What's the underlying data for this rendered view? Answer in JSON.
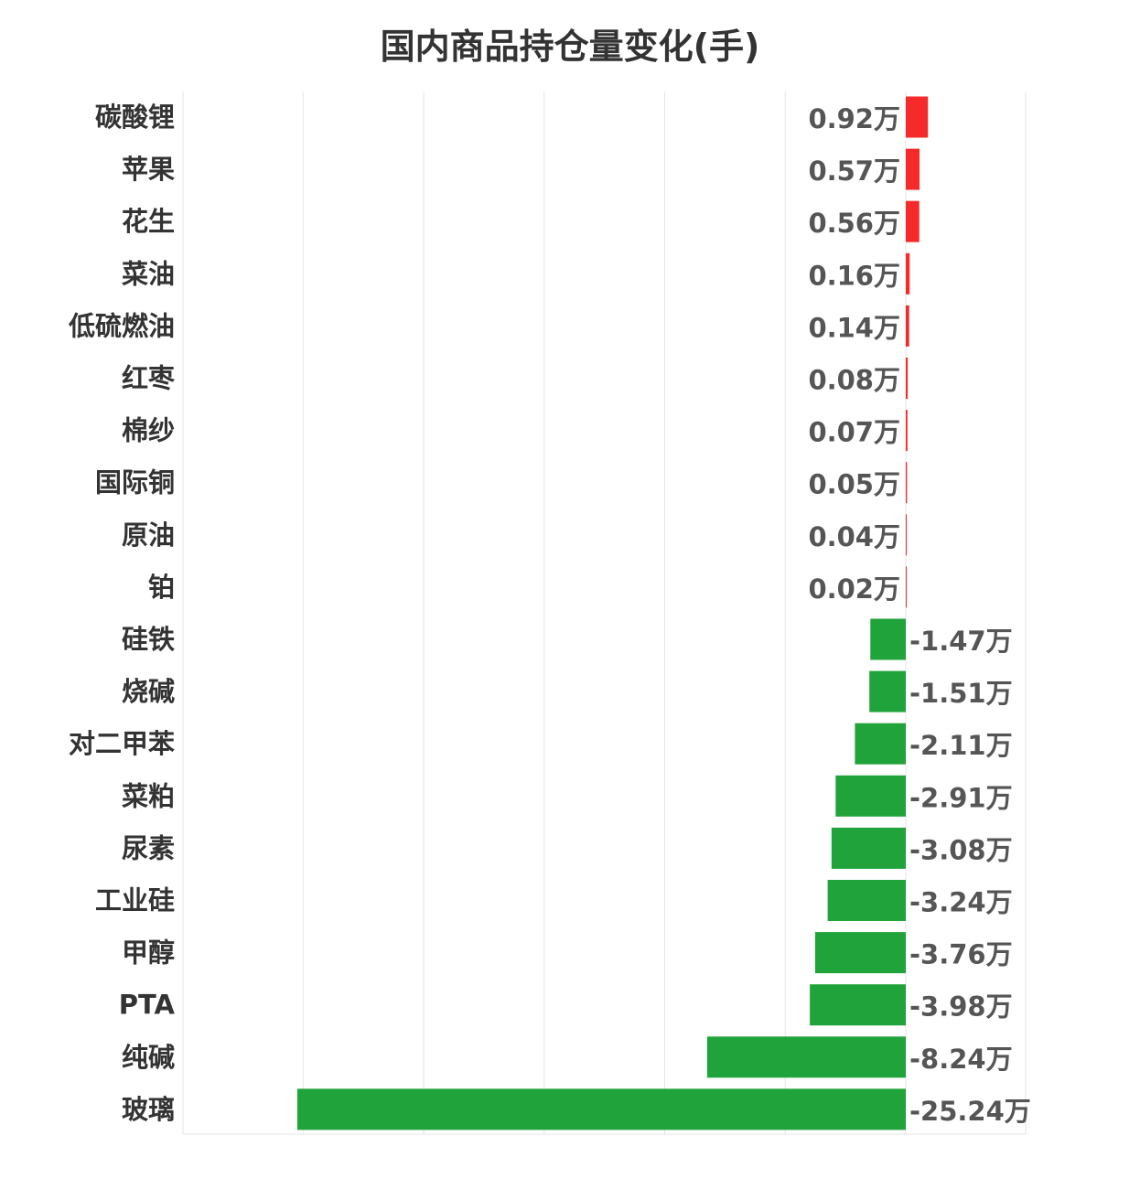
{
  "chart_data": {
    "type": "bar",
    "orientation": "horizontal",
    "title": "国内商品持仓量变化(手)",
    "unit_suffix": "万",
    "categories": [
      "碳酸锂",
      "苹果",
      "花生",
      "菜油",
      "低硫燃油",
      "红枣",
      "棉纱",
      "国际铜",
      "原油",
      "铂",
      "硅铁",
      "烧碱",
      "对二甲苯",
      "菜粕",
      "尿素",
      "工业硅",
      "甲醇",
      "PTA",
      "纯碱",
      "玻璃"
    ],
    "values": [
      0.92,
      0.57,
      0.56,
      0.16,
      0.14,
      0.08,
      0.07,
      0.05,
      0.04,
      0.02,
      -1.47,
      -1.51,
      -2.11,
      -2.91,
      -3.08,
      -3.24,
      -3.76,
      -3.98,
      -8.24,
      -25.24
    ],
    "value_labels": [
      "0.92万",
      "0.57万",
      "0.56万",
      "0.16万",
      "0.14万",
      "0.08万",
      "0.07万",
      "0.05万",
      "0.04万",
      "0.02万",
      "-1.47万",
      "-1.51万",
      "-2.11万",
      "-2.91万",
      "-3.08万",
      "-3.24万",
      "-3.76万",
      "-3.98万",
      "-8.24万",
      "-25.24万"
    ],
    "xlim": [
      -30,
      5
    ],
    "grid": true,
    "colors": {
      "positive": "#f52a2a",
      "negative": "#21a33b"
    }
  }
}
